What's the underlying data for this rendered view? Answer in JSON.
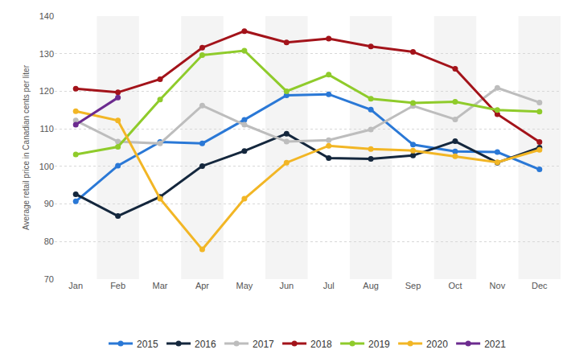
{
  "chart_data": {
    "type": "line",
    "y_label": "Average retail price in Canadian cents per liter",
    "categories": [
      "Jan",
      "Feb",
      "Mar",
      "Apr",
      "May",
      "Jun",
      "Jul",
      "Aug",
      "Sep",
      "Oct",
      "Nov",
      "Dec"
    ],
    "series": [
      {
        "name": "2015",
        "color": "#2a78d6",
        "values": [
          90.7,
          100.2,
          106.5,
          106.1,
          112.4,
          118.9,
          119.2,
          115.1,
          105.8,
          104.0,
          103.8,
          99.2
        ]
      },
      {
        "name": "2016",
        "color": "#14273d",
        "values": [
          92.6,
          86.8,
          91.9,
          100.1,
          104.1,
          108.7,
          102.2,
          102.0,
          102.9,
          106.7,
          101.0,
          105.0
        ]
      },
      {
        "name": "2017",
        "color": "#bdbdbd",
        "values": [
          112.2,
          106.6,
          106.1,
          116.2,
          111.1,
          106.6,
          107.0,
          109.8,
          116.1,
          112.5,
          120.9,
          117.0
        ]
      },
      {
        "name": "2018",
        "color": "#a3131a",
        "values": [
          120.7,
          119.7,
          123.2,
          131.6,
          136.0,
          133.0,
          134.0,
          131.9,
          130.5,
          126.0,
          113.9,
          106.5
        ]
      },
      {
        "name": "2019",
        "color": "#8fcb2b",
        "values": [
          103.2,
          105.2,
          117.8,
          129.6,
          130.8,
          120.0,
          124.4,
          118.0,
          116.9,
          117.2,
          115.0,
          114.6
        ]
      },
      {
        "name": "2020",
        "color": "#f2b625",
        "values": [
          114.7,
          112.2,
          91.4,
          77.9,
          91.4,
          101.0,
          105.5,
          104.6,
          104.2,
          102.7,
          101.1,
          104.4
        ]
      },
      {
        "name": "2021",
        "color": "#6c2b8f",
        "values": [
          111.1,
          118.3,
          null,
          null,
          null,
          null,
          null,
          null,
          null,
          null,
          null,
          null
        ]
      }
    ],
    "ylim": [
      70,
      140
    ],
    "yticks": [
      70,
      80,
      90,
      100,
      110,
      120,
      130,
      140
    ],
    "grid": true,
    "legend": "bottom",
    "marker": "circle"
  }
}
